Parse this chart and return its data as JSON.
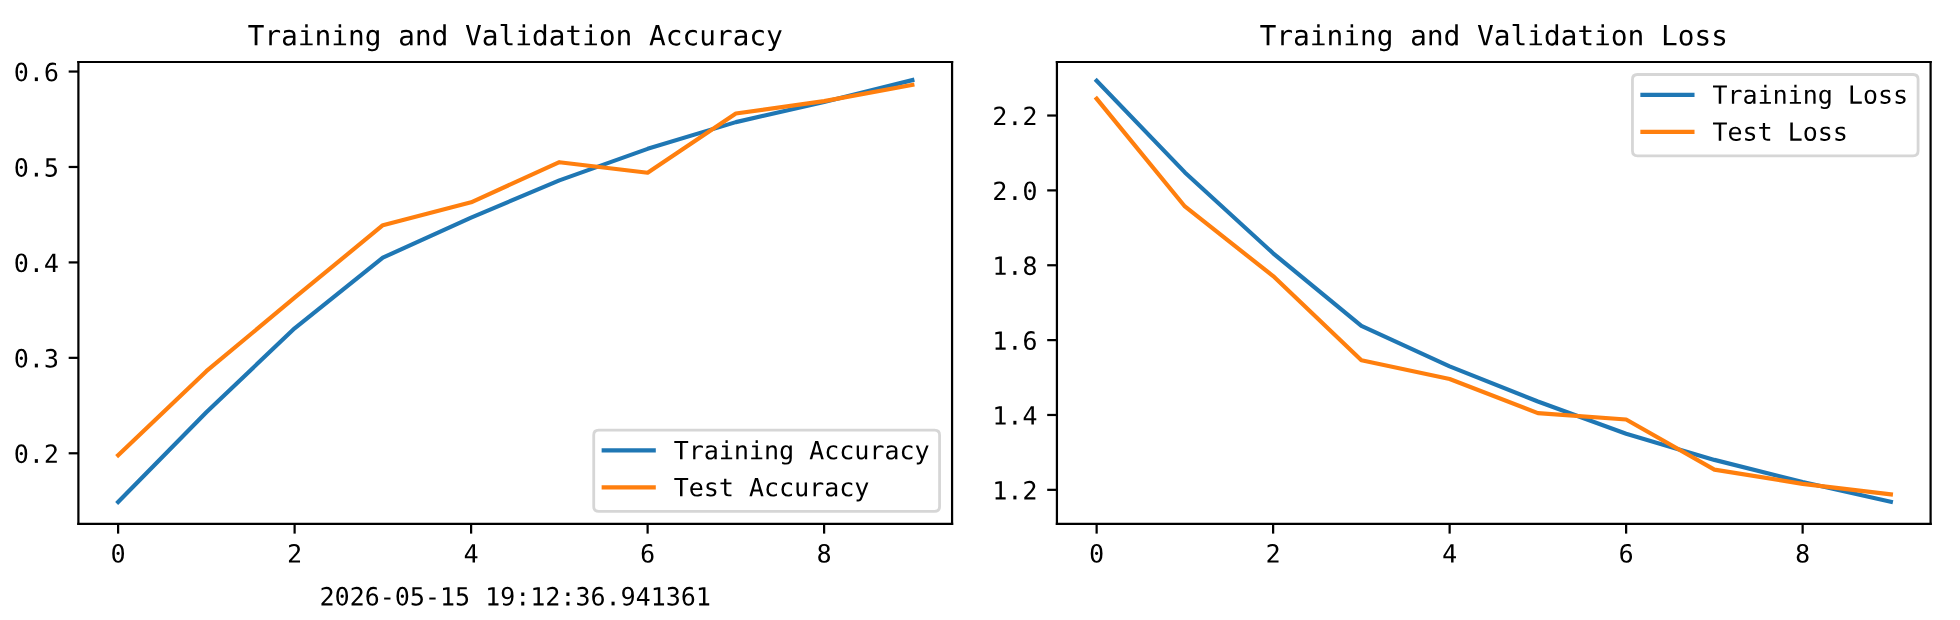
{
  "chart_data": [
    {
      "type": "line",
      "title": "Training and Validation Accuracy",
      "x": [
        0,
        1,
        2,
        3,
        4,
        5,
        6,
        7,
        8,
        9
      ],
      "xlim": [
        -0.45,
        9.45
      ],
      "xticks": [
        0,
        2,
        4,
        6,
        8
      ],
      "ylim": [
        0.126,
        0.61
      ],
      "yticks": [
        0.2,
        0.3,
        0.4,
        0.5,
        0.6
      ],
      "legend": "bottom right",
      "grid": false,
      "series": [
        {
          "name": "Training Accuracy",
          "color": "#1f77b4",
          "values": [
            0.149,
            0.243,
            0.331,
            0.405,
            0.447,
            0.486,
            0.519,
            0.547,
            0.568,
            0.591
          ]
        },
        {
          "name": "Test Accuracy",
          "color": "#ff7f0e",
          "values": [
            0.198,
            0.286,
            0.363,
            0.439,
            0.463,
            0.505,
            0.494,
            0.556,
            0.569,
            0.586
          ]
        }
      ],
      "annotations": [
        "2026-05-15 19:12:36.941361"
      ]
    },
    {
      "type": "line",
      "title": "Training and Validation Loss",
      "x": [
        0,
        1,
        2,
        3,
        4,
        5,
        6,
        7,
        8,
        9
      ],
      "xlim": [
        -0.45,
        9.45
      ],
      "xticks": [
        0,
        2,
        4,
        6,
        8
      ],
      "ylim": [
        1.109,
        2.343
      ],
      "yticks": [
        {
          "value": 1.2,
          "label": "1.2"
        },
        {
          "value": 1.4,
          "label": "1.4"
        },
        {
          "value": 1.6,
          "label": "1.6"
        },
        {
          "value": 1.8,
          "label": "1.8"
        },
        {
          "value": 2.0,
          "label": "2.0"
        },
        {
          "value": 2.2,
          "label": "2.2"
        }
      ],
      "legend": "top right",
      "grid": false,
      "series": [
        {
          "name": "Training Loss",
          "color": "#1f77b4",
          "values": [
            2.293,
            2.048,
            1.832,
            1.638,
            1.53,
            1.436,
            1.35,
            1.28,
            1.221,
            1.168
          ]
        },
        {
          "name": "Test Loss",
          "color": "#ff7f0e",
          "values": [
            2.245,
            1.957,
            1.771,
            1.546,
            1.496,
            1.405,
            1.388,
            1.254,
            1.216,
            1.188
          ]
        }
      ]
    }
  ]
}
